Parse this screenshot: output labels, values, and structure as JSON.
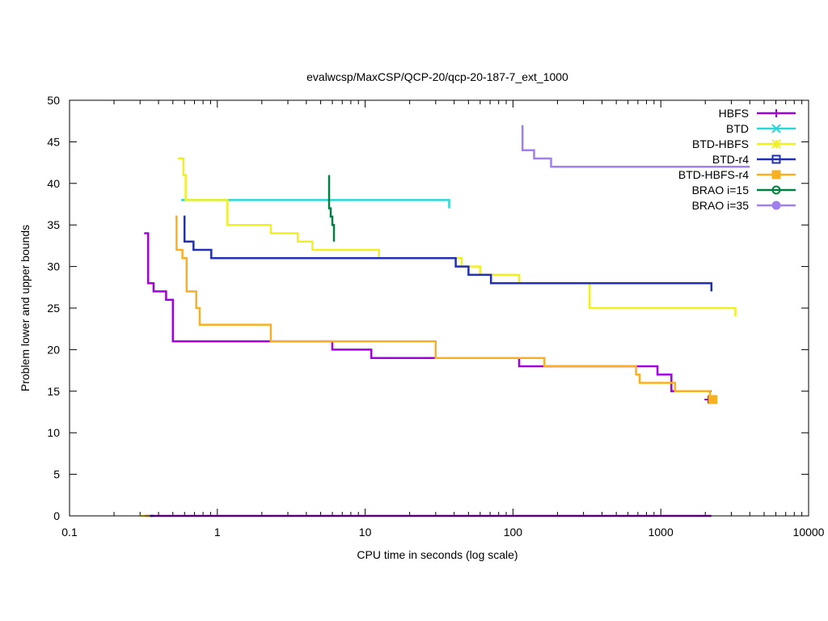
{
  "chart_data": {
    "type": "line",
    "title": "evalwcsp/MaxCSP/QCP-20/qcp-20-187-7_ext_1000",
    "xlabel": "CPU time in seconds (log scale)",
    "ylabel": "Problem lower and upper bounds",
    "xscale": "log",
    "xlim": [
      0.1,
      10000
    ],
    "ylim": [
      0,
      50
    ],
    "xticks": [
      0.1,
      1,
      10,
      100,
      1000,
      10000
    ],
    "xtick_labels": [
      "0.1",
      "1",
      "10",
      "100",
      "1000",
      "10000"
    ],
    "yticks": [
      0,
      5,
      10,
      15,
      20,
      25,
      30,
      35,
      40,
      45,
      50
    ],
    "ytick_labels": [
      "0",
      "5",
      "10",
      "15",
      "20",
      "25",
      "30",
      "35",
      "40",
      "45",
      "50"
    ],
    "legend_position": "top-right",
    "series": [
      {
        "name": "HBFS",
        "color": "#a000e0",
        "marker": "plus",
        "points": [
          [
            0.32,
            34
          ],
          [
            0.34,
            34
          ],
          [
            0.34,
            28
          ],
          [
            0.37,
            28
          ],
          [
            0.37,
            27
          ],
          [
            0.45,
            27
          ],
          [
            0.45,
            26
          ],
          [
            0.5,
            26
          ],
          [
            0.5,
            21
          ],
          [
            6,
            21
          ],
          [
            6,
            20
          ],
          [
            11,
            20
          ],
          [
            11,
            19
          ],
          [
            110,
            19
          ],
          [
            110,
            18
          ],
          [
            700,
            18
          ],
          [
            700,
            18
          ],
          [
            950,
            18
          ],
          [
            950,
            17
          ],
          [
            1180,
            17
          ],
          [
            1180,
            15
          ],
          [
            2200,
            15
          ]
        ],
        "lower": [
          [
            0.32,
            0
          ],
          [
            2200,
            0
          ]
        ],
        "end_marker": [
          2100,
          14
        ]
      },
      {
        "name": "BTD",
        "color": "#28d8d8",
        "marker": "x",
        "points": [
          [
            0.57,
            38
          ],
          [
            37,
            38
          ],
          [
            37,
            37
          ]
        ],
        "lower": []
      },
      {
        "name": "BTD-HBFS",
        "color": "#f0f020",
        "marker": "star",
        "points": [
          [
            0.54,
            43
          ],
          [
            0.59,
            43
          ],
          [
            0.59,
            41
          ],
          [
            0.61,
            41
          ],
          [
            0.61,
            38
          ],
          [
            1.17,
            38
          ],
          [
            1.17,
            35
          ],
          [
            2.3,
            35
          ],
          [
            2.3,
            34
          ],
          [
            3.5,
            34
          ],
          [
            3.5,
            33
          ],
          [
            4.4,
            33
          ],
          [
            4.4,
            32
          ],
          [
            12.4,
            32
          ],
          [
            12.4,
            31
          ],
          [
            45,
            31
          ],
          [
            45,
            30
          ],
          [
            60,
            30
          ],
          [
            60,
            29
          ],
          [
            110,
            29
          ],
          [
            110,
            28
          ],
          [
            330,
            28
          ],
          [
            330,
            25
          ],
          [
            3200,
            25
          ],
          [
            3200,
            24
          ]
        ],
        "lower": [
          [
            0.3,
            0
          ],
          [
            0.33,
            0
          ]
        ]
      },
      {
        "name": "BTD-r4",
        "color": "#2030b0",
        "marker": "square",
        "points": [
          [
            0.59,
            36
          ],
          [
            0.6,
            36
          ],
          [
            0.6,
            33
          ],
          [
            0.69,
            33
          ],
          [
            0.69,
            32
          ],
          [
            0.91,
            32
          ],
          [
            0.91,
            31
          ],
          [
            41,
            31
          ],
          [
            41,
            30
          ],
          [
            50,
            30
          ],
          [
            50,
            29
          ],
          [
            71,
            29
          ],
          [
            71,
            28
          ],
          [
            2200,
            28
          ],
          [
            2200,
            27
          ]
        ],
        "lower": [
          [
            0.35,
            0
          ],
          [
            0.37,
            0
          ]
        ]
      },
      {
        "name": "BTD-HBFS-r4",
        "color": "#f8b020",
        "marker": "filled-square",
        "points": [
          [
            0.52,
            36
          ],
          [
            0.53,
            36
          ],
          [
            0.53,
            32
          ],
          [
            0.58,
            32
          ],
          [
            0.58,
            31
          ],
          [
            0.62,
            31
          ],
          [
            0.62,
            27
          ],
          [
            0.72,
            27
          ],
          [
            0.72,
            25
          ],
          [
            0.76,
            25
          ],
          [
            0.76,
            23
          ],
          [
            2.3,
            23
          ],
          [
            2.3,
            21
          ],
          [
            30,
            21
          ],
          [
            30,
            19
          ],
          [
            163,
            19
          ],
          [
            163,
            18
          ],
          [
            680,
            18
          ],
          [
            680,
            17
          ],
          [
            720,
            17
          ],
          [
            720,
            16
          ],
          [
            1250,
            16
          ],
          [
            1250,
            15
          ],
          [
            2150,
            15
          ],
          [
            2150,
            14
          ]
        ],
        "lower": [
          [
            0.33,
            0
          ],
          [
            0.35,
            0
          ]
        ],
        "end_marker": [
          2250,
          14
        ]
      },
      {
        "name": "BRAO i=15",
        "color": "#008040",
        "marker": "circle",
        "points": [
          [
            5.7,
            41
          ],
          [
            5.7,
            37
          ],
          [
            5.85,
            37
          ],
          [
            5.85,
            36
          ],
          [
            6.0,
            36
          ],
          [
            6.0,
            35
          ],
          [
            6.15,
            35
          ],
          [
            6.15,
            33
          ]
        ],
        "lower": []
      },
      {
        "name": "BRAO i=35",
        "color": "#a080f0",
        "marker": "filled-circle",
        "points": [
          [
            116,
            47
          ],
          [
            116,
            44
          ],
          [
            139,
            44
          ],
          [
            139,
            43
          ],
          [
            181,
            43
          ],
          [
            181,
            42
          ],
          [
            4000,
            42
          ]
        ],
        "lower": []
      }
    ]
  }
}
